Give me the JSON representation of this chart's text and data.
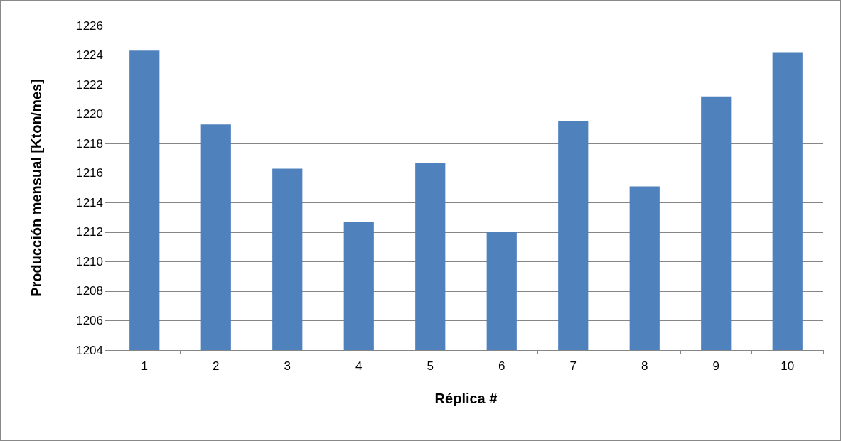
{
  "chart_data": {
    "type": "bar",
    "xlabel": "Réplica #",
    "ylabel": "Producción mensual [Kton/mes]",
    "categories": [
      "1",
      "2",
      "3",
      "4",
      "5",
      "6",
      "7",
      "8",
      "9",
      "10"
    ],
    "values": [
      1224.3,
      1219.3,
      1216.3,
      1212.7,
      1216.7,
      1212.0,
      1219.5,
      1215.1,
      1221.2,
      1224.2
    ],
    "color": "#4f81bd",
    "ylim": [
      1204,
      1226
    ],
    "yticks": [
      1204,
      1206,
      1208,
      1210,
      1212,
      1214,
      1216,
      1218,
      1220,
      1222,
      1224,
      1226
    ],
    "grid": "y"
  }
}
